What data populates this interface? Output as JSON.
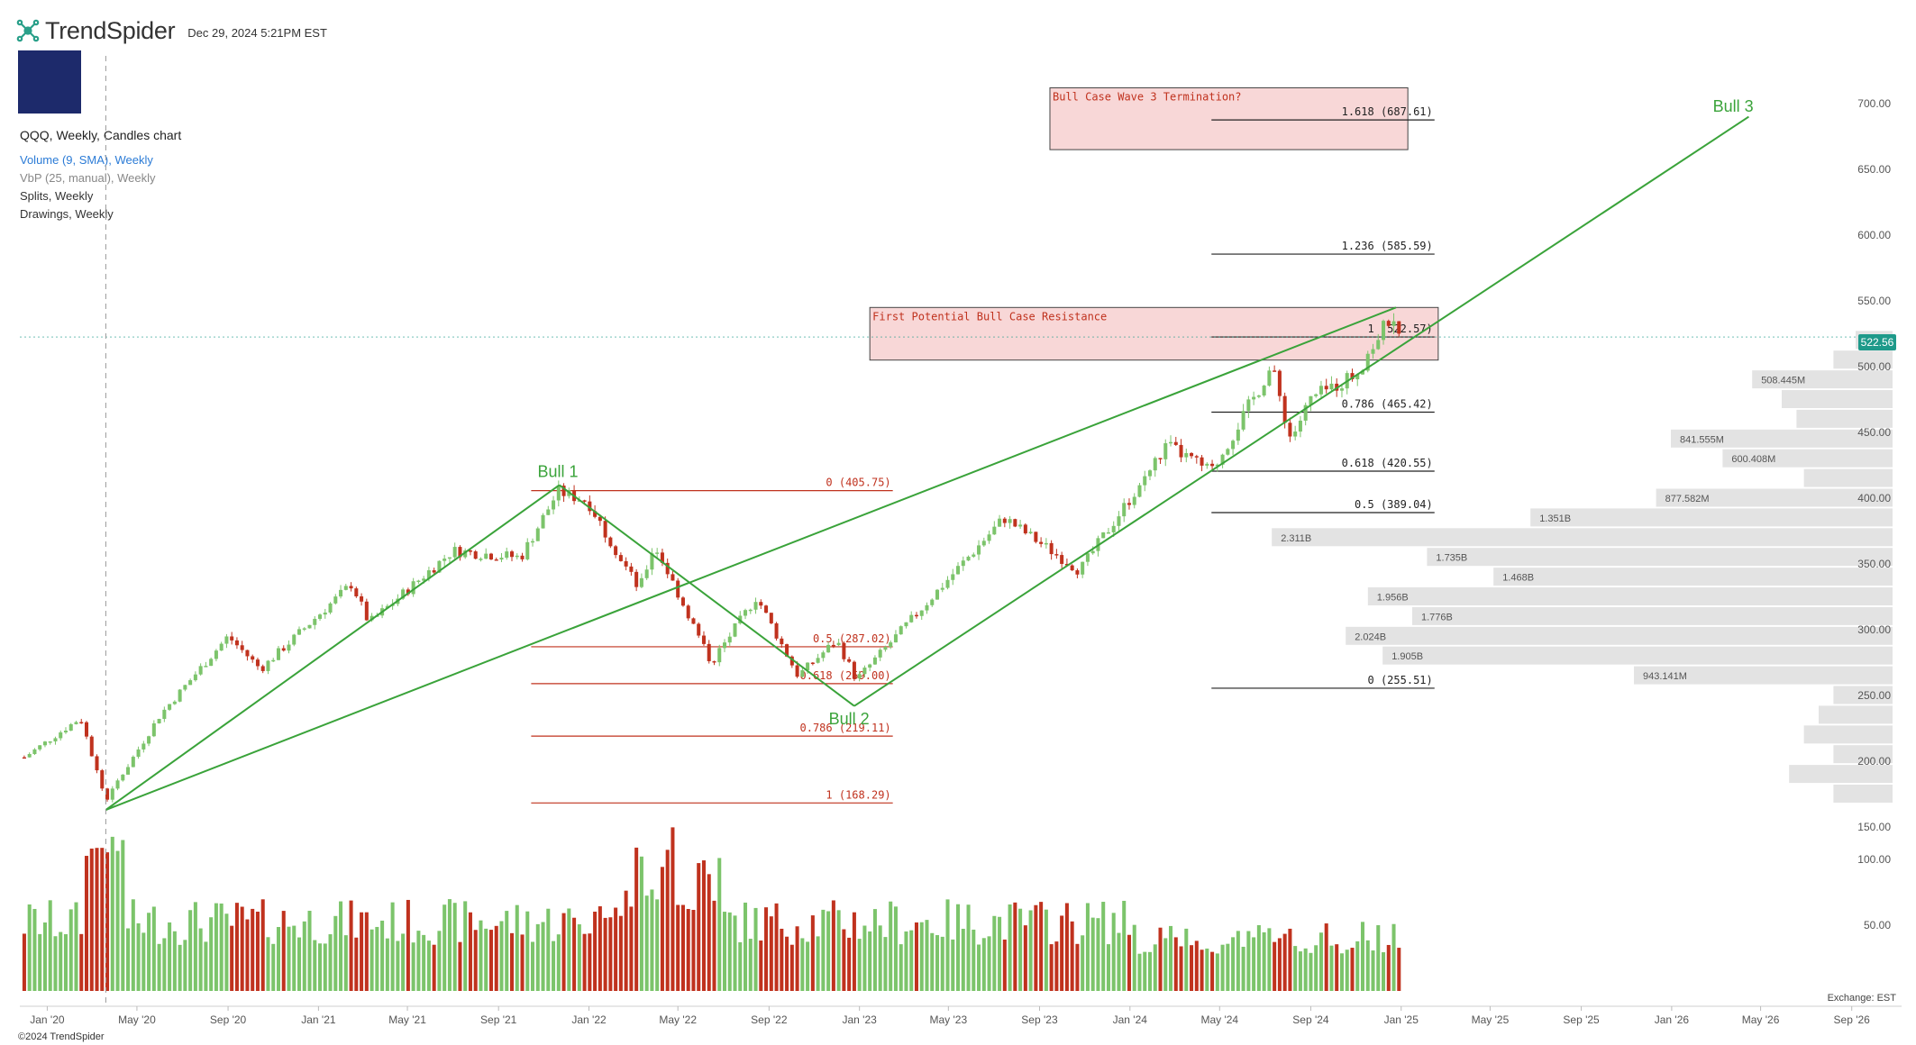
{
  "header": {
    "brand": "TrendSpider",
    "datetime": "Dec 29, 2024 5:21PM EST"
  },
  "legend": {
    "main": "QQQ, Weekly, Candles chart",
    "volume": "Volume (9, SMA), Weekly",
    "vbp": "VbP (25, manual), Weekly",
    "splits": "Splits, Weekly",
    "drawings": "Drawings, Weekly"
  },
  "footer": {
    "exchange": "Exchange: EST",
    "copyright": "©2024 TrendSpider"
  },
  "last_price": "522.56",
  "colors": {
    "up": "#7cc46b",
    "down": "#c0321e",
    "trend": "#3aa33a",
    "fib_red": "#c0321e",
    "zone": "#f7d0d0",
    "vbp": "#e3e3e3",
    "price_tag": "#1e9a8a"
  },
  "chart_data": {
    "type": "candlestick",
    "ticker": "QQQ",
    "timeframe": "Weekly",
    "x_tick_labels": [
      "Jan '20",
      "May '20",
      "Sep '20",
      "Jan '21",
      "May '21",
      "Sep '21",
      "Jan '22",
      "May '22",
      "Sep '22",
      "Jan '23",
      "May '23",
      "Sep '23",
      "Jan '24",
      "May '24",
      "Sep '24",
      "Jan '25",
      "May '25",
      "Sep '25",
      "Jan '26",
      "May '26",
      "Sep '26"
    ],
    "y_ticks": [
      150,
      200,
      250,
      300,
      350,
      400,
      450,
      500,
      550,
      600,
      650,
      700
    ],
    "y_tick_labels": [
      "150.00",
      "200.00",
      "250.00",
      "300.00",
      "350.00",
      "400.00",
      "450.00",
      "500.00",
      "550.00",
      "600.00",
      "650.00",
      "700.00"
    ],
    "ylim": [
      140,
      715
    ],
    "volume_ticks": [
      50,
      100
    ],
    "volume_tick_labels": [
      "50.00",
      "100.00"
    ],
    "price_path": [
      {
        "t": "2019-12-01",
        "p": 203
      },
      {
        "t": "2020-02-15",
        "p": 233
      },
      {
        "t": "2020-03-20",
        "p": 170
      },
      {
        "t": "2020-06-01",
        "p": 235
      },
      {
        "t": "2020-09-01",
        "p": 295
      },
      {
        "t": "2020-10-15",
        "p": 270
      },
      {
        "t": "2021-02-15",
        "p": 335
      },
      {
        "t": "2021-03-10",
        "p": 305
      },
      {
        "t": "2021-07-01",
        "p": 360
      },
      {
        "t": "2021-10-01",
        "p": 355
      },
      {
        "t": "2021-11-20",
        "p": 405
      },
      {
        "t": "2021-12-30",
        "p": 398
      },
      {
        "t": "2022-03-10",
        "p": 330
      },
      {
        "t": "2022-03-30",
        "p": 365
      },
      {
        "t": "2022-06-15",
        "p": 275
      },
      {
        "t": "2022-08-15",
        "p": 325
      },
      {
        "t": "2022-10-10",
        "p": 265
      },
      {
        "t": "2022-12-01",
        "p": 292
      },
      {
        "t": "2022-12-28",
        "p": 262
      },
      {
        "t": "2023-07-15",
        "p": 385
      },
      {
        "t": "2023-10-25",
        "p": 345
      },
      {
        "t": "2024-02-20",
        "p": 440
      },
      {
        "t": "2024-04-20",
        "p": 420
      },
      {
        "t": "2024-07-10",
        "p": 500
      },
      {
        "t": "2024-08-05",
        "p": 445
      },
      {
        "t": "2024-09-01",
        "p": 475
      },
      {
        "t": "2024-11-01",
        "p": 495
      },
      {
        "t": "2024-12-15",
        "p": 535
      },
      {
        "t": "2024-12-29",
        "p": 522.56
      }
    ],
    "fib_retracement": {
      "levels": [
        {
          "label": "0 (405.75)",
          "value": 405.75
        },
        {
          "label": "0.5 (287.02)",
          "value": 287.02
        },
        {
          "label": "0.618 (259.00)",
          "value": 259.0
        },
        {
          "label": "0.786 (219.11)",
          "value": 219.11
        },
        {
          "label": "1 (168.29)",
          "value": 168.29
        }
      ],
      "t_start": "2021-10-15",
      "t_end": "2023-02-15"
    },
    "fib_extension": {
      "levels": [
        {
          "label": "0 (255.51)",
          "value": 255.51
        },
        {
          "label": "0.5 (389.04)",
          "value": 389.04
        },
        {
          "label": "0.618 (420.55)",
          "value": 420.55
        },
        {
          "label": "0.786 (465.42)",
          "value": 465.42
        },
        {
          "label": "1 (522.57)",
          "value": 522.57
        },
        {
          "label": "1.236 (585.59)",
          "value": 585.59
        },
        {
          "label": "1.618 (687.61)",
          "value": 687.61
        }
      ],
      "t_start": "2024-04-20",
      "t_end": "2025-02-15"
    },
    "zones": [
      {
        "label": "First Potential Bull Case Resistance",
        "t_start": "2023-01-15",
        "t_end": "2025-02-20",
        "y_low": 505,
        "y_high": 545
      },
      {
        "label": "Bull Case Wave 3 Termination?",
        "t_start": "2023-09-15",
        "t_end": "2025-01-10",
        "y_low": 665,
        "y_high": 712
      }
    ],
    "trendlines": [
      {
        "from": {
          "t": "2020-03-20",
          "y": 163
        },
        "to": {
          "t": "2021-11-22",
          "y": 410
        }
      },
      {
        "from": {
          "t": "2021-11-22",
          "y": 410
        },
        "to": {
          "t": "2022-12-25",
          "y": 242
        }
      },
      {
        "from": {
          "t": "2022-12-25",
          "y": 242
        },
        "to": {
          "t": "2026-04-15",
          "y": 690
        }
      },
      {
        "from": {
          "t": "2020-03-20",
          "y": 163
        },
        "to": {
          "t": "2024-12-25",
          "y": 545
        }
      }
    ],
    "wave_labels": [
      {
        "text": "Bull 1",
        "t": "2021-11-20",
        "y": 416
      },
      {
        "text": "Bull 2",
        "t": "2022-12-18",
        "y": 228
      },
      {
        "text": "Bull 3",
        "t": "2026-03-25",
        "y": 694
      }
    ],
    "volume_by_price": [
      {
        "y": 520,
        "label": ""
      },
      {
        "y": 505,
        "label": ""
      },
      {
        "y": 490,
        "label": "508.445M"
      },
      {
        "y": 475,
        "label": ""
      },
      {
        "y": 460,
        "label": ""
      },
      {
        "y": 445,
        "label": "841.555M"
      },
      {
        "y": 430,
        "label": "600.408M"
      },
      {
        "y": 415,
        "label": ""
      },
      {
        "y": 400,
        "label": "877.582M"
      },
      {
        "y": 385,
        "label": "1.351B"
      },
      {
        "y": 370,
        "label": "2.311B"
      },
      {
        "y": 355,
        "label": "1.735B"
      },
      {
        "y": 340,
        "label": "1.468B"
      },
      {
        "y": 325,
        "label": "1.956B"
      },
      {
        "y": 310,
        "label": "1.776B"
      },
      {
        "y": 295,
        "label": "2.024B"
      },
      {
        "y": 280,
        "label": "1.905B"
      },
      {
        "y": 265,
        "label": "943.141M"
      },
      {
        "y": 250,
        "label": ""
      },
      {
        "y": 235,
        "label": ""
      },
      {
        "y": 220,
        "label": ""
      },
      {
        "y": 205,
        "label": ""
      },
      {
        "y": 190,
        "label": ""
      },
      {
        "y": 175,
        "label": ""
      }
    ],
    "volume_by_price_values": [
      0.05,
      0.08,
      0.19,
      0.15,
      0.13,
      0.3,
      0.23,
      0.12,
      0.32,
      0.49,
      0.84,
      0.63,
      0.54,
      0.71,
      0.65,
      0.74,
      0.69,
      0.35,
      0.08,
      0.1,
      0.12,
      0.08,
      0.14,
      0.08
    ]
  }
}
